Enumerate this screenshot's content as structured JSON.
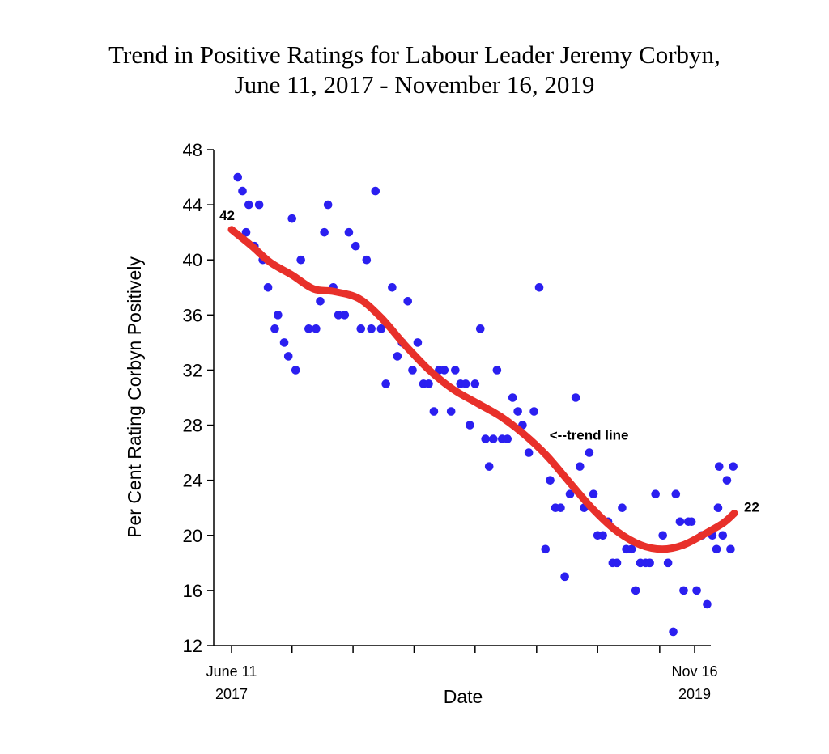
{
  "chart_data": {
    "type": "scatter",
    "title": "Trend in Positive Ratings for Labour Leader Jeremy Corbyn,",
    "subtitle": "June 11, 2017 - November 16, 2019",
    "xlabel": "Date",
    "ylabel": "Per Cent Rating Corbyn Positively",
    "ylim": [
      12,
      48
    ],
    "yticks": [
      12,
      16,
      20,
      24,
      28,
      32,
      36,
      40,
      44,
      48
    ],
    "xlim": [
      "2017-05-01",
      "2020-01-01"
    ],
    "x_tick_labels": [
      {
        "x": "2017-06-11",
        "line1": "June 11",
        "line2": "2017"
      },
      {
        "x": "2019-11-16",
        "line1": "Nov 16",
        "line2": "2019"
      }
    ],
    "x_minor_ticks": [
      "2017-06-11",
      "2017-10-05",
      "2018-01-30",
      "2018-05-27",
      "2018-09-21",
      "2019-01-17",
      "2019-05-14",
      "2019-09-10",
      "2019-11-16"
    ],
    "grid": false,
    "colors": {
      "points": "#2b1ff0",
      "trend": "#e8302a",
      "text": "#000000"
    },
    "series": [
      {
        "values": [
          [
            "2017-06-23",
            46
          ],
          [
            "2017-07-02",
            45
          ],
          [
            "2017-07-14",
            44
          ],
          [
            "2017-08-03",
            44
          ],
          [
            "2017-07-09",
            42
          ],
          [
            "2017-07-25",
            41
          ],
          [
            "2017-08-10",
            40
          ],
          [
            "2017-08-20",
            38
          ],
          [
            "2017-09-02",
            35
          ],
          [
            "2017-09-08",
            36
          ],
          [
            "2017-09-20",
            34
          ],
          [
            "2017-09-28",
            33
          ],
          [
            "2017-10-05",
            43
          ],
          [
            "2017-10-12",
            32
          ],
          [
            "2017-10-22",
            40
          ],
          [
            "2017-11-06",
            35
          ],
          [
            "2017-11-20",
            35
          ],
          [
            "2017-11-28",
            37
          ],
          [
            "2017-12-06",
            42
          ],
          [
            "2017-12-13",
            44
          ],
          [
            "2017-12-23",
            38
          ],
          [
            "2018-01-02",
            36
          ],
          [
            "2018-01-14",
            36
          ],
          [
            "2018-01-22",
            42
          ],
          [
            "2018-02-04",
            41
          ],
          [
            "2018-02-14",
            35
          ],
          [
            "2018-02-25",
            40
          ],
          [
            "2018-03-06",
            35
          ],
          [
            "2018-03-14",
            45
          ],
          [
            "2018-03-25",
            35
          ],
          [
            "2018-04-03",
            31
          ],
          [
            "2018-04-15",
            38
          ],
          [
            "2018-04-25",
            33
          ],
          [
            "2018-05-04",
            34
          ],
          [
            "2018-05-15",
            37
          ],
          [
            "2018-05-24",
            32
          ],
          [
            "2018-06-03",
            34
          ],
          [
            "2018-06-14",
            31
          ],
          [
            "2018-06-24",
            31
          ],
          [
            "2018-07-04",
            29
          ],
          [
            "2018-07-14",
            32
          ],
          [
            "2018-07-24",
            32
          ],
          [
            "2018-08-06",
            29
          ],
          [
            "2018-08-14",
            32
          ],
          [
            "2018-08-24",
            31
          ],
          [
            "2018-09-03",
            31
          ],
          [
            "2018-09-11",
            28
          ],
          [
            "2018-09-21",
            31
          ],
          [
            "2018-10-01",
            35
          ],
          [
            "2018-10-11",
            27
          ],
          [
            "2018-10-18",
            25
          ],
          [
            "2018-10-26",
            27
          ],
          [
            "2018-11-02",
            32
          ],
          [
            "2018-11-12",
            27
          ],
          [
            "2018-11-22",
            27
          ],
          [
            "2018-12-02",
            30
          ],
          [
            "2018-12-12",
            29
          ],
          [
            "2018-12-21",
            28
          ],
          [
            "2019-01-02",
            26
          ],
          [
            "2019-01-12",
            29
          ],
          [
            "2019-01-22",
            38
          ],
          [
            "2019-02-03",
            19
          ],
          [
            "2019-02-12",
            24
          ],
          [
            "2019-02-22",
            22
          ],
          [
            "2019-03-04",
            22
          ],
          [
            "2019-03-12",
            17
          ],
          [
            "2019-03-22",
            23
          ],
          [
            "2019-04-02",
            30
          ],
          [
            "2019-04-10",
            25
          ],
          [
            "2019-04-18",
            22
          ],
          [
            "2019-04-28",
            26
          ],
          [
            "2019-05-06",
            23
          ],
          [
            "2019-05-14",
            20
          ],
          [
            "2019-05-24",
            20
          ],
          [
            "2019-06-03",
            21
          ],
          [
            "2019-06-12",
            18
          ],
          [
            "2019-06-20",
            18
          ],
          [
            "2019-06-30",
            22
          ],
          [
            "2019-07-08",
            19
          ],
          [
            "2019-07-18",
            19
          ],
          [
            "2019-07-26",
            16
          ],
          [
            "2019-08-04",
            18
          ],
          [
            "2019-08-14",
            18
          ],
          [
            "2019-08-22",
            18
          ],
          [
            "2019-09-02",
            23
          ],
          [
            "2019-09-16",
            20
          ],
          [
            "2019-09-26",
            18
          ],
          [
            "2019-10-06",
            13
          ],
          [
            "2019-10-11",
            23
          ],
          [
            "2019-10-19",
            21
          ],
          [
            "2019-10-26",
            16
          ],
          [
            "2019-11-04",
            21
          ],
          [
            "2019-11-10",
            21
          ],
          [
            "2019-11-20",
            16
          ],
          [
            "2019-11-30",
            20
          ],
          [
            "2019-12-10",
            15
          ],
          [
            "2019-12-20",
            20
          ],
          [
            "2019-12-28",
            19
          ],
          [
            "2020-01-02",
            25
          ],
          [
            "2019-12-31",
            22
          ],
          [
            "2020-01-09",
            20
          ],
          [
            "2020-01-17",
            24
          ],
          [
            "2020-01-24",
            19
          ],
          [
            "2020-01-29",
            25
          ]
        ]
      },
      {
        "type": "line",
        "values": [
          [
            "2017-06-11",
            42.2
          ],
          [
            "2017-07-20",
            41.0
          ],
          [
            "2017-08-25",
            39.8
          ],
          [
            "2017-10-05",
            38.9
          ],
          [
            "2017-11-15",
            37.9
          ],
          [
            "2017-12-25",
            37.7
          ],
          [
            "2018-02-10",
            37.2
          ],
          [
            "2018-03-25",
            35.8
          ],
          [
            "2018-05-10",
            33.8
          ],
          [
            "2018-06-25",
            32.0
          ],
          [
            "2018-08-10",
            30.6
          ],
          [
            "2018-09-25",
            29.6
          ],
          [
            "2018-11-10",
            28.6
          ],
          [
            "2018-12-25",
            27.3
          ],
          [
            "2019-02-05",
            25.8
          ],
          [
            "2019-03-20",
            23.9
          ],
          [
            "2019-05-05",
            21.9
          ],
          [
            "2019-06-20",
            20.3
          ],
          [
            "2019-08-05",
            19.3
          ],
          [
            "2019-09-15",
            19.0
          ],
          [
            "2019-10-25",
            19.3
          ],
          [
            "2019-12-05",
            20.1
          ],
          [
            "2020-01-10",
            20.9
          ],
          [
            "2020-01-31",
            21.6
          ]
        ]
      }
    ],
    "annotations": [
      {
        "text": "42",
        "x": "2017-06-11",
        "y": 42.2,
        "position": "left"
      },
      {
        "text": "22",
        "x": "2020-01-31",
        "y": 21.6,
        "position": "right"
      },
      {
        "text": "<--trend line",
        "x": "2019-01-20",
        "y": 27.3,
        "position": "right"
      }
    ]
  }
}
